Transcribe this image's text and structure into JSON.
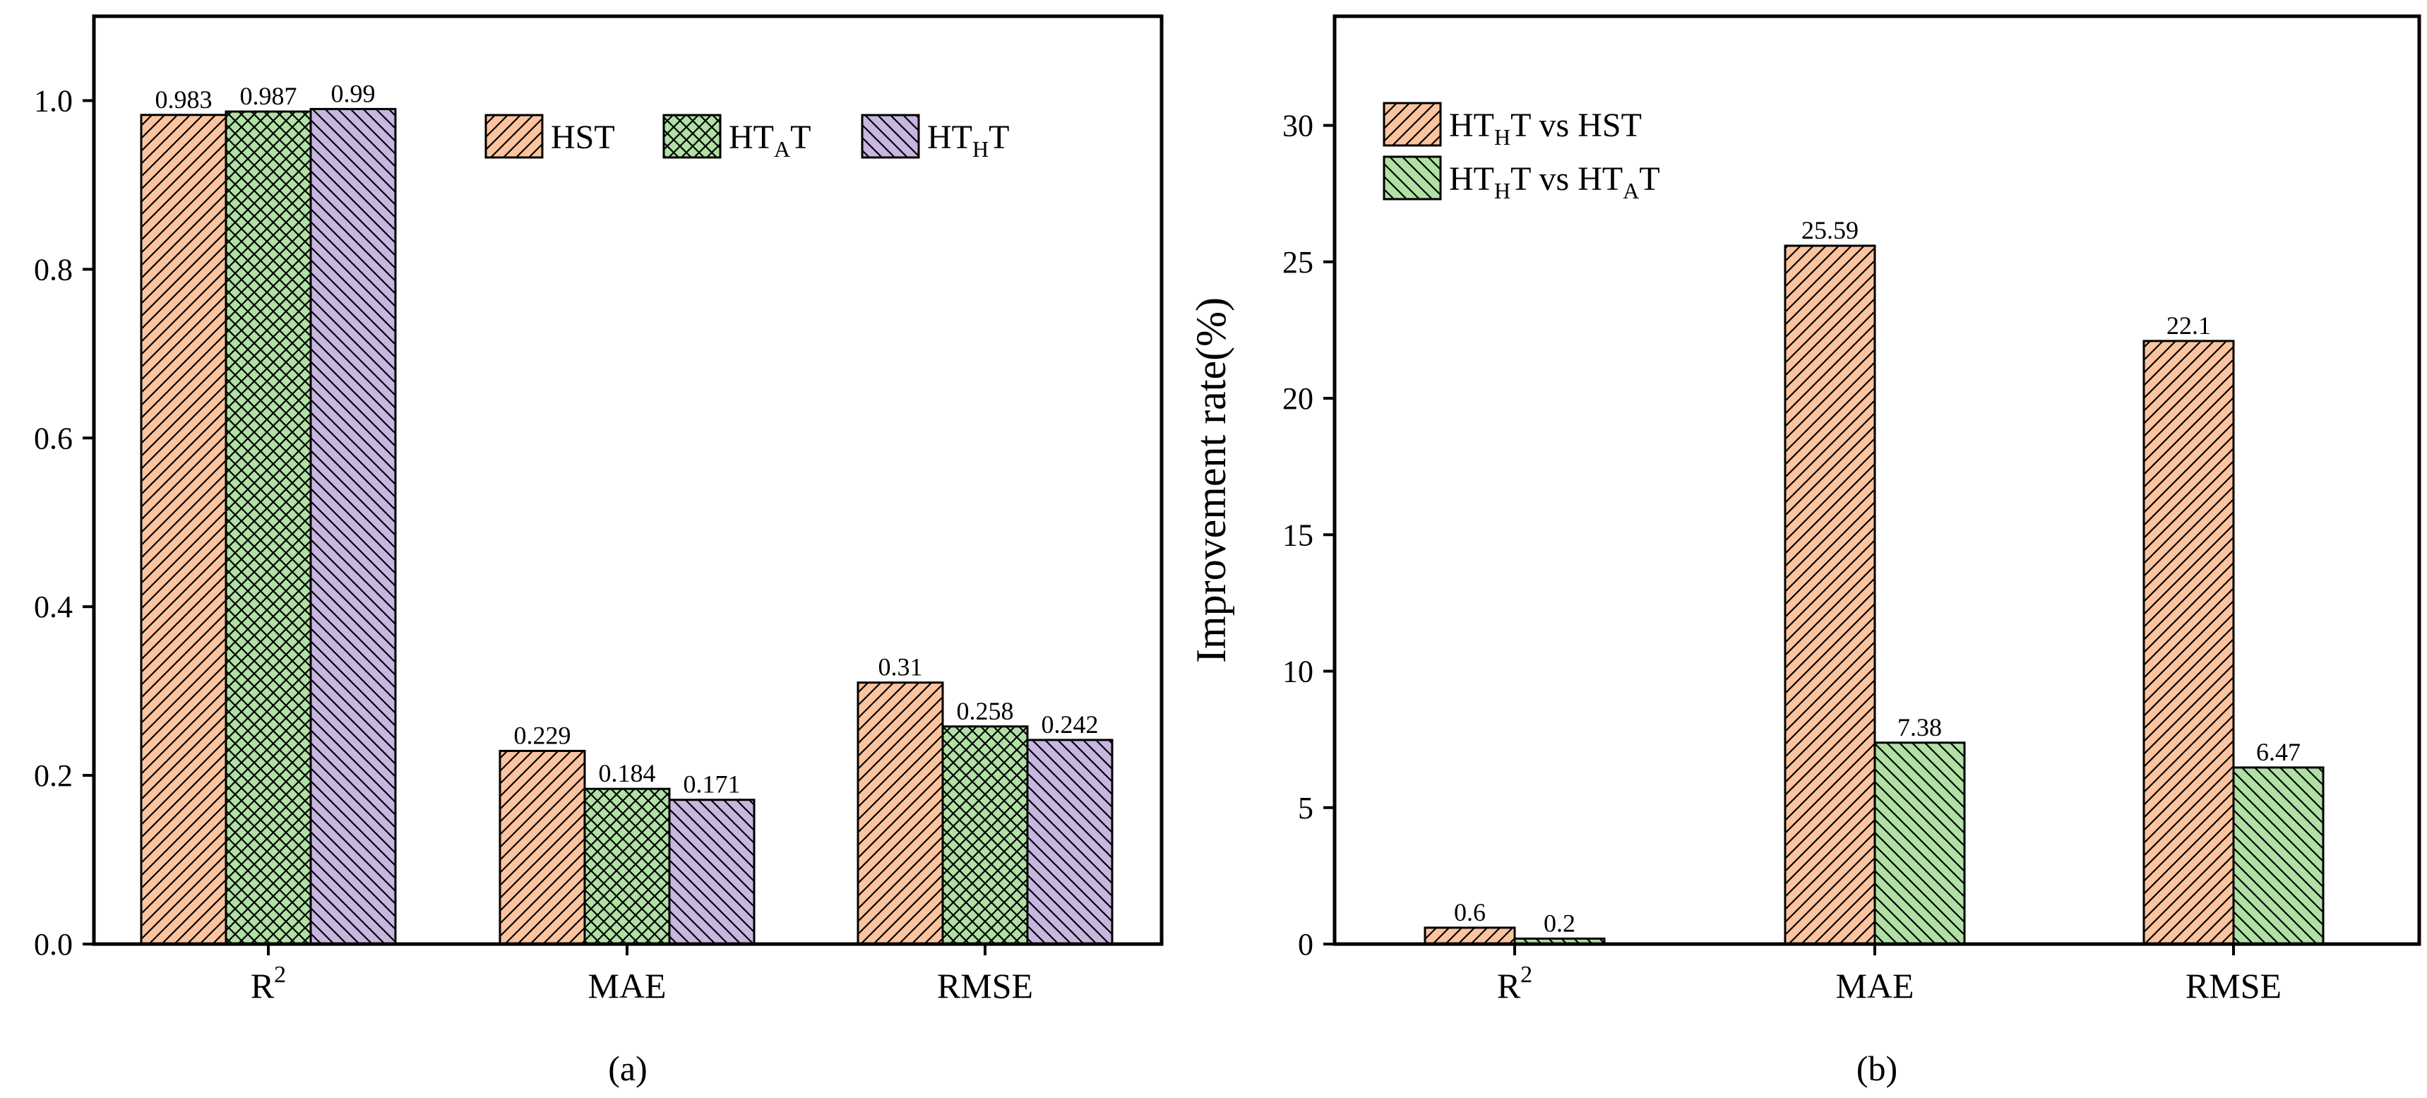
{
  "colors": {
    "orange": "#FBC49E",
    "green": "#B0E0A4",
    "purple": "#C7B6E0",
    "stroke": "#000000"
  },
  "chart_data": [
    {
      "type": "bar",
      "panel_label": "(a)",
      "ylabel": "",
      "ylim": [
        0,
        1.1
      ],
      "yticks": [
        "0.0",
        "0.2",
        "0.4",
        "0.6",
        "0.8",
        "1.0"
      ],
      "ytick_values": [
        0,
        0.2,
        0.4,
        0.6,
        0.8,
        1.0
      ],
      "categories": [
        {
          "base": "R",
          "sup": "2"
        },
        {
          "base": "MAE",
          "sup": ""
        },
        {
          "base": "RMSE",
          "sup": ""
        }
      ],
      "legend_position": "top-right",
      "legend_layout": "horizontal",
      "series": [
        {
          "name": "HST",
          "legend": {
            "pre": "HST",
            "sub": "",
            "post": ""
          },
          "color": "#FBC49E",
          "pattern": "forward-diagonal",
          "values": [
            0.983,
            0.229,
            0.31
          ],
          "labels": [
            "0.983",
            "0.229",
            "0.31"
          ]
        },
        {
          "name": "HTAT",
          "legend": {
            "pre": "HT",
            "sub": "A",
            "post": "T"
          },
          "color": "#B0E0A4",
          "pattern": "crosshatch",
          "values": [
            0.987,
            0.184,
            0.258
          ],
          "labels": [
            "0.987",
            "0.184",
            "0.258"
          ]
        },
        {
          "name": "HTHT",
          "legend": {
            "pre": "HT",
            "sub": "H",
            "post": "T"
          },
          "color": "#C7B6E0",
          "pattern": "back-diagonal",
          "values": [
            0.99,
            0.171,
            0.242
          ],
          "labels": [
            "0.99",
            "0.171",
            "0.242"
          ]
        }
      ]
    },
    {
      "type": "bar",
      "panel_label": "(b)",
      "ylabel": "Improvement rate(%)",
      "ylim": [
        0,
        34
      ],
      "yticks": [
        "0",
        "5",
        "10",
        "15",
        "20",
        "25",
        "30"
      ],
      "ytick_values": [
        0,
        5,
        10,
        15,
        20,
        25,
        30
      ],
      "categories": [
        {
          "base": "R",
          "sup": "2"
        },
        {
          "base": "MAE",
          "sup": ""
        },
        {
          "base": "RMSE",
          "sup": ""
        }
      ],
      "legend_position": "top-left",
      "legend_layout": "vertical",
      "series": [
        {
          "name": "HTHT vs HST",
          "legend": {
            "pre": "HT",
            "sub": "H",
            "post": "T vs HST"
          },
          "color": "#FBC49E",
          "pattern": "forward-diagonal",
          "values": [
            0.6,
            25.59,
            22.1
          ],
          "labels": [
            "0.6",
            "25.59",
            "22.1"
          ]
        },
        {
          "name": "HTHT vs HTAT",
          "legend": {
            "pre": "HT",
            "sub": "H",
            "post": "T vs HT",
            "sub2": "A",
            "post2": "T"
          },
          "color": "#B0E0A4",
          "pattern": "back-diagonal",
          "values": [
            0.2,
            7.38,
            6.47
          ],
          "labels": [
            "0.2",
            "7.38",
            "6.47"
          ]
        }
      ]
    }
  ]
}
